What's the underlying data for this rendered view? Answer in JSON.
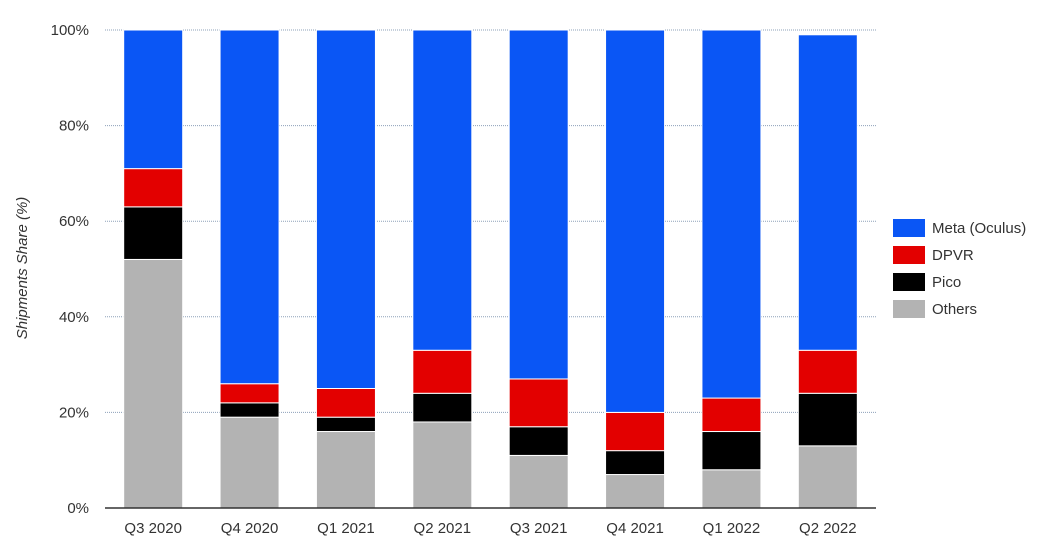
{
  "chart_data": {
    "type": "bar",
    "stacked": true,
    "categories": [
      "Q3 2020",
      "Q4 2020",
      "Q1 2021",
      "Q2 2021",
      "Q3 2021",
      "Q4 2021",
      "Q1 2022",
      "Q2 2022"
    ],
    "series": [
      {
        "name": "Others",
        "color": "#b3b3b3",
        "values": [
          52,
          19,
          16,
          18,
          11,
          7,
          8,
          13
        ]
      },
      {
        "name": "Pico",
        "color": "#000000",
        "values": [
          11,
          3,
          3,
          6,
          6,
          5,
          8,
          11
        ]
      },
      {
        "name": "DPVR",
        "color": "#e30000",
        "values": [
          8,
          4,
          6,
          9,
          10,
          8,
          7,
          9
        ]
      },
      {
        "name": "Meta (Oculus)",
        "color": "#0a56f5",
        "values": [
          29,
          74,
          75,
          67,
          73,
          80,
          77,
          66
        ]
      }
    ],
    "ylabel": "Shipments Share (%)",
    "ylim": [
      0,
      100
    ],
    "yticks": [
      "0%",
      "20%",
      "40%",
      "60%",
      "80%",
      "100%"
    ],
    "grid": true,
    "legend_position": "right",
    "legend_order": [
      "Meta (Oculus)",
      "DPVR",
      "Pico",
      "Others"
    ]
  }
}
